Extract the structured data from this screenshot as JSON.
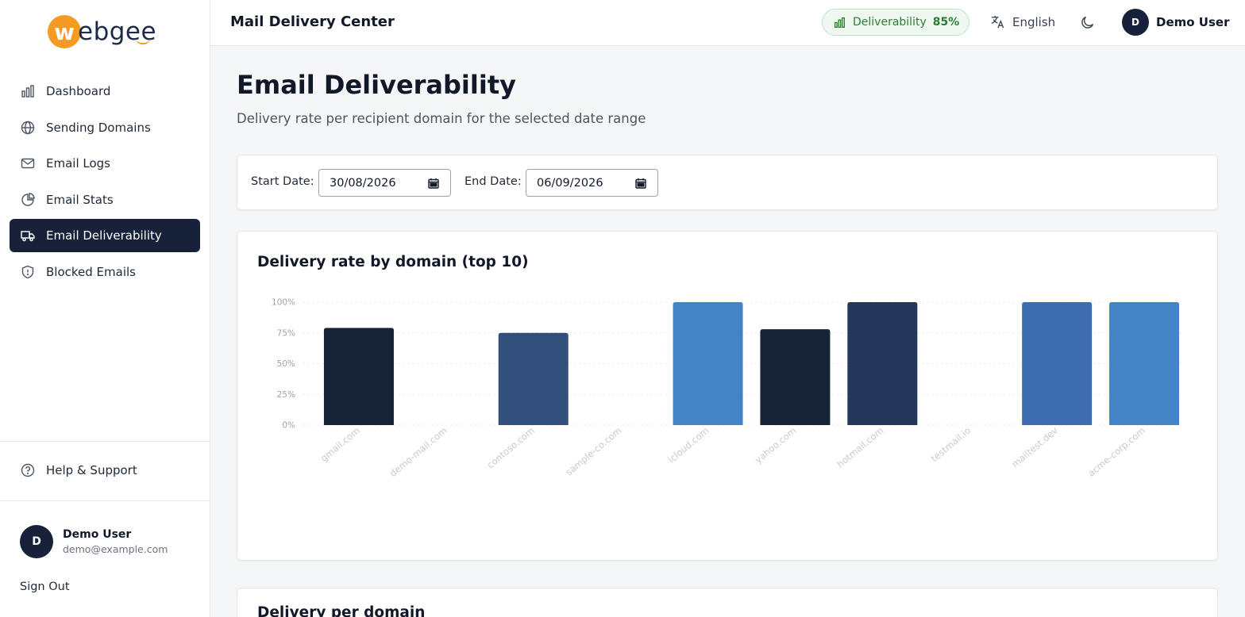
{
  "brand": {
    "name": "webgee",
    "logo_letter": "w",
    "logo_rest": "ebgee",
    "accent": "#f59a23"
  },
  "sidebar": {
    "items": [
      {
        "label": "Dashboard",
        "icon": "bar-chart-icon"
      },
      {
        "label": "Sending Domains",
        "icon": "globe-icon"
      },
      {
        "label": "Email Logs",
        "icon": "mail-icon"
      },
      {
        "label": "Email Stats",
        "icon": "pie-chart-icon"
      },
      {
        "label": "Email Deliverability",
        "icon": "truck-icon",
        "active": true
      },
      {
        "label": "Blocked Emails",
        "icon": "shield-icon"
      }
    ],
    "help_label": "Help & Support",
    "user": {
      "initial": "D",
      "name": "Demo User",
      "email": "demo@example.com"
    },
    "sign_out": "Sign Out"
  },
  "header": {
    "title": "Mail Delivery Center",
    "deliverability_label": "Deliverability",
    "deliverability_pct": "85%",
    "language": "English",
    "user_initial": "D",
    "user_name": "Demo User"
  },
  "page": {
    "title": "Email Deliverability",
    "subtitle": "Delivery rate per recipient domain for the selected date range"
  },
  "filters": {
    "start_label": "Start Date:",
    "start_value": "30/08/2026",
    "end_label": "End Date:",
    "end_value": "06/09/2026"
  },
  "chart_card_title": "Delivery rate by domain (top 10)",
  "chart_data": {
    "type": "bar",
    "title": "Delivery rate by domain (top 10)",
    "categories": [
      "gmail.com",
      "demo-mail.com",
      "contoso.com",
      "sample-co.com",
      "icloud.com",
      "yahoo.com",
      "hotmail.com",
      "testmail.io",
      "mailtest.dev",
      "acme-corp.com"
    ],
    "values": [
      79,
      0,
      75,
      0,
      100,
      78,
      100,
      0,
      100,
      100
    ],
    "bar_colors": [
      "#172336",
      "#172336",
      "#334f7b",
      "#334f7b",
      "#4583c7",
      "#172336",
      "#24375a",
      "#24375a",
      "#3d6db0",
      "#4583c7"
    ],
    "ylim": [
      0,
      100
    ],
    "yticks": [
      "0%",
      "25%",
      "50%",
      "75%",
      "100%"
    ],
    "grid": true
  },
  "bottom_card_title": "Delivery per domain"
}
